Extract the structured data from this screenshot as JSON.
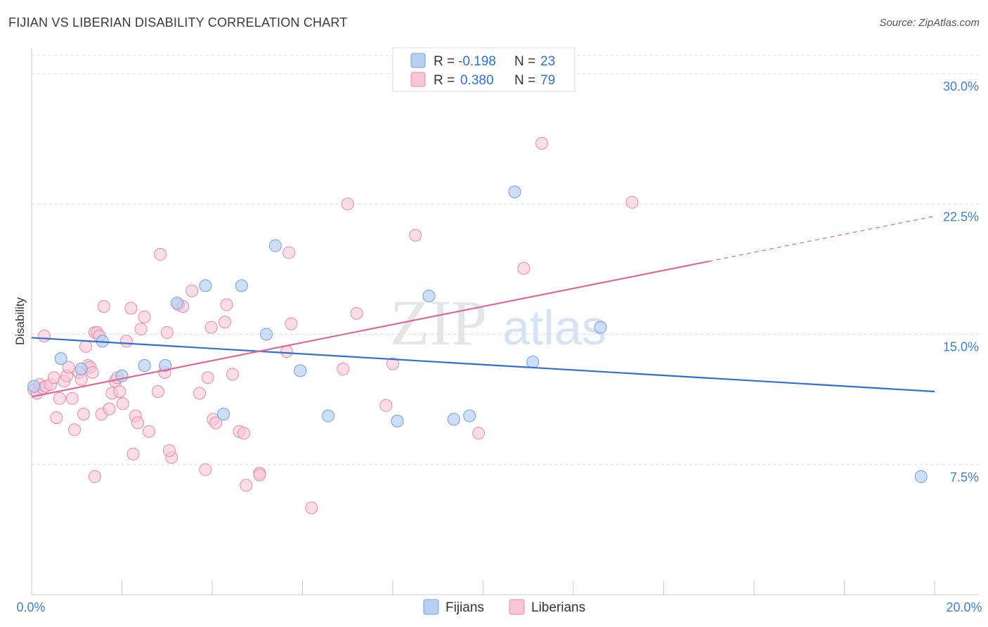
{
  "header": {
    "title": "FIJIAN VS LIBERIAN DISABILITY CORRELATION CHART",
    "source": "Source: ZipAtlas.com"
  },
  "watermark": {
    "zip": "ZIP",
    "atlas": "atlas"
  },
  "colors": {
    "fijian_fill": "#b8d1f3",
    "fijian_stroke": "#6f9fe0",
    "fijian_line": "#2f6fd6",
    "liberian_fill": "#f8c6d5",
    "liberian_stroke": "#e88aaa",
    "liberian_line": "#e2689a",
    "tick_text": "#3f7fd1",
    "grid": "#dddddd"
  },
  "legend": {
    "r_label": "R =",
    "n_label": "N =",
    "fijian": {
      "r": "-0.198",
      "n": "23"
    },
    "liberian": {
      "r": "0.380",
      "n": "79"
    }
  },
  "chart_data": {
    "type": "scatter",
    "title": "FIJIAN VS LIBERIAN DISABILITY CORRELATION CHART",
    "xlabel": "",
    "ylabel": "Disability",
    "xlim": [
      0,
      20
    ],
    "ylim": [
      0,
      31.5
    ],
    "x_tick_labels": [
      "0.0%",
      "20.0%"
    ],
    "y_ticks": [
      7.5,
      15.0,
      22.5,
      30.0
    ],
    "y_tick_labels": [
      "7.5%",
      "15.0%",
      "22.5%",
      "30.0%"
    ],
    "legend_labels": [
      "Fijians",
      "Liberians"
    ],
    "series": [
      {
        "name": "Fijians",
        "r": -0.198,
        "n": 23,
        "trend": {
          "x": [
            0,
            20
          ],
          "y": [
            14.8,
            11.7
          ],
          "dashed_from": null
        },
        "points": [
          [
            0.05,
            12.0
          ],
          [
            0.65,
            13.6
          ],
          [
            1.1,
            13.0
          ],
          [
            1.57,
            14.6
          ],
          [
            2.0,
            12.6
          ],
          [
            2.5,
            13.2
          ],
          [
            2.96,
            13.2
          ],
          [
            3.22,
            16.8
          ],
          [
            3.85,
            17.8
          ],
          [
            4.25,
            10.4
          ],
          [
            4.65,
            17.8
          ],
          [
            5.4,
            20.1
          ],
          [
            5.2,
            15.0
          ],
          [
            5.95,
            12.9
          ],
          [
            6.57,
            10.3
          ],
          [
            8.1,
            10.0
          ],
          [
            8.8,
            17.2
          ],
          [
            9.35,
            10.1
          ],
          [
            9.7,
            10.3
          ],
          [
            10.7,
            23.2
          ],
          [
            11.1,
            13.4
          ],
          [
            12.6,
            15.4
          ],
          [
            19.7,
            6.8
          ]
        ]
      },
      {
        "name": "Liberians",
        "r": 0.38,
        "n": 79,
        "trend": {
          "x": [
            0,
            20
          ],
          "y": [
            11.4,
            21.8
          ],
          "dashed_from": 15.0
        },
        "points": [
          [
            0.05,
            11.8
          ],
          [
            0.12,
            11.6
          ],
          [
            0.18,
            12.1
          ],
          [
            0.25,
            11.9
          ],
          [
            0.32,
            12.0
          ],
          [
            0.28,
            14.9
          ],
          [
            0.42,
            12.1
          ],
          [
            0.5,
            12.5
          ],
          [
            0.55,
            10.2
          ],
          [
            0.62,
            11.3
          ],
          [
            0.72,
            12.3
          ],
          [
            0.78,
            12.6
          ],
          [
            0.82,
            13.1
          ],
          [
            0.9,
            11.3
          ],
          [
            0.95,
            9.5
          ],
          [
            1.05,
            12.8
          ],
          [
            1.1,
            12.4
          ],
          [
            1.15,
            10.4
          ],
          [
            1.2,
            14.3
          ],
          [
            1.25,
            13.2
          ],
          [
            1.3,
            13.1
          ],
          [
            1.35,
            12.8
          ],
          [
            1.4,
            15.1
          ],
          [
            1.45,
            15.1
          ],
          [
            1.5,
            14.9
          ],
          [
            1.55,
            10.4
          ],
          [
            1.6,
            16.6
          ],
          [
            1.72,
            10.7
          ],
          [
            1.78,
            11.6
          ],
          [
            1.85,
            12.3
          ],
          [
            1.9,
            12.5
          ],
          [
            1.95,
            11.7
          ],
          [
            2.02,
            11.0
          ],
          [
            2.1,
            14.6
          ],
          [
            2.2,
            16.5
          ],
          [
            2.3,
            10.3
          ],
          [
            2.35,
            9.9
          ],
          [
            2.42,
            15.3
          ],
          [
            2.5,
            16.0
          ],
          [
            2.6,
            9.4
          ],
          [
            2.8,
            11.7
          ],
          [
            2.85,
            19.6
          ],
          [
            2.95,
            12.8
          ],
          [
            3.0,
            15.1
          ],
          [
            3.1,
            7.9
          ],
          [
            3.25,
            16.7
          ],
          [
            3.35,
            16.6
          ],
          [
            3.55,
            17.5
          ],
          [
            3.72,
            11.6
          ],
          [
            3.85,
            7.2
          ],
          [
            3.9,
            12.5
          ],
          [
            3.98,
            15.4
          ],
          [
            4.02,
            10.1
          ],
          [
            4.08,
            9.9
          ],
          [
            4.28,
            15.7
          ],
          [
            4.32,
            16.7
          ],
          [
            4.45,
            12.7
          ],
          [
            4.6,
            9.4
          ],
          [
            4.7,
            9.3
          ],
          [
            4.75,
            6.3
          ],
          [
            5.05,
            7.0
          ],
          [
            5.05,
            6.9
          ],
          [
            5.65,
            14.0
          ],
          [
            5.7,
            19.7
          ],
          [
            5.75,
            15.6
          ],
          [
            6.2,
            5.0
          ],
          [
            6.9,
            13.0
          ],
          [
            7.0,
            22.5
          ],
          [
            7.2,
            16.2
          ],
          [
            7.85,
            10.9
          ],
          [
            8.0,
            13.3
          ],
          [
            8.5,
            20.7
          ],
          [
            9.9,
            9.3
          ],
          [
            10.9,
            18.8
          ],
          [
            11.3,
            26.0
          ],
          [
            13.3,
            22.6
          ],
          [
            1.4,
            6.8
          ],
          [
            2.25,
            8.1
          ],
          [
            3.05,
            8.3
          ]
        ]
      }
    ]
  }
}
